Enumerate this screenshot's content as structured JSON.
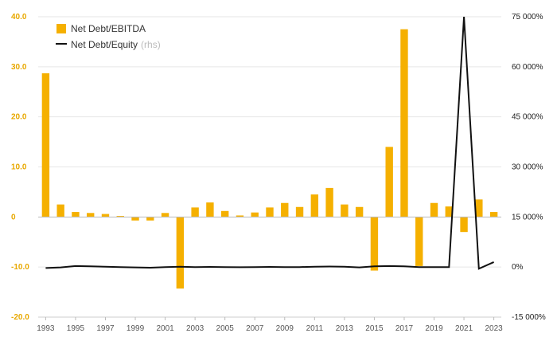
{
  "chart_data": {
    "type": "bar",
    "x": [
      1993,
      1994,
      1995,
      1996,
      1997,
      1998,
      1999,
      2000,
      2001,
      2002,
      2003,
      2004,
      2005,
      2006,
      2007,
      2008,
      2009,
      2010,
      2011,
      2012,
      2013,
      2014,
      2015,
      2016,
      2017,
      2018,
      2019,
      2020,
      2021,
      2022,
      2023
    ],
    "x_tick_labels": [
      "1993",
      "1995",
      "1997",
      "1999",
      "2001",
      "2003",
      "2005",
      "2007",
      "2009",
      "2011",
      "2013",
      "2015",
      "2017",
      "2019",
      "2021",
      "2023"
    ],
    "series": [
      {
        "name": "Net Debt/EBITDA",
        "type": "bar",
        "axis": "left",
        "color": "#f5b000",
        "values": [
          28.7,
          2.5,
          1.0,
          0.8,
          0.6,
          0.2,
          -0.7,
          -0.7,
          0.8,
          -14.3,
          1.9,
          2.9,
          1.2,
          0.3,
          0.9,
          1.9,
          2.8,
          2.0,
          4.5,
          5.8,
          2.5,
          2.0,
          -10.7,
          14.0,
          37.5,
          -9.8,
          2.8,
          2.1,
          -3.0,
          3.5,
          1.0
        ]
      },
      {
        "name": "Net Debt/Equity",
        "name_note": "(rhs)",
        "type": "line",
        "axis": "right",
        "color": "#111111",
        "values": [
          -300,
          -100,
          300,
          200,
          100,
          0,
          -100,
          -200,
          0,
          100,
          0,
          50,
          0,
          -50,
          0,
          50,
          0,
          0,
          100,
          150,
          100,
          -100,
          200,
          300,
          200,
          0,
          0,
          0,
          75000,
          -500,
          1500
        ]
      }
    ],
    "y_left": {
      "ylim": [
        -20,
        40
      ],
      "ticks": [
        40,
        30,
        20,
        10,
        0,
        -10,
        -20
      ],
      "tick_labels": [
        "40.0",
        "30.0",
        "20.0",
        "10.0",
        "0",
        "-10.0",
        "-20.0"
      ],
      "color": "#e8a800"
    },
    "y_right": {
      "ylim": [
        -15000,
        75000
      ],
      "ticks": [
        75000,
        60000,
        45000,
        30000,
        15000,
        0,
        -15000
      ],
      "tick_labels": [
        "75 000%",
        "60 000%",
        "45 000%",
        "30 000%",
        "15 000%",
        "0%",
        "-15 000%"
      ]
    },
    "grid": "horizontal",
    "legend_position": "top-left"
  }
}
